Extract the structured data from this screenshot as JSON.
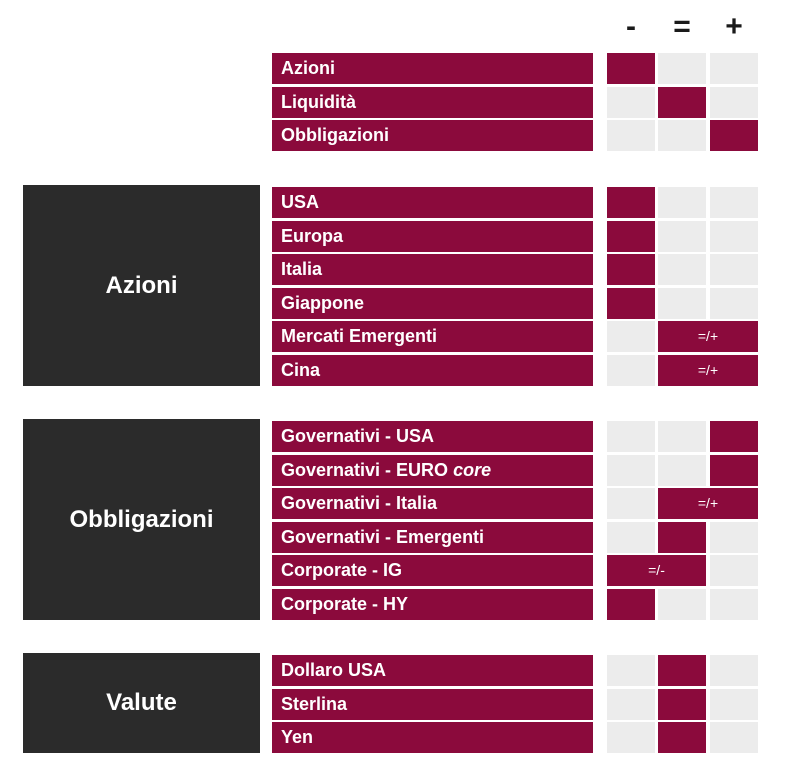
{
  "headers": [
    "-",
    "=",
    "+"
  ],
  "asset_classes": {
    "rows": [
      {
        "label": "Azioni",
        "col_start": 0,
        "col_end": 0,
        "text": ""
      },
      {
        "label": "Liquidità",
        "col_start": 1,
        "col_end": 1,
        "text": ""
      },
      {
        "label": "Obbligazioni",
        "col_start": 2,
        "col_end": 2,
        "text": ""
      }
    ]
  },
  "groups": [
    {
      "name": "Azioni",
      "rows": [
        {
          "label": "USA",
          "col_start": 0,
          "col_end": 0,
          "text": ""
        },
        {
          "label": "Europa",
          "col_start": 0,
          "col_end": 0,
          "text": ""
        },
        {
          "label": "Italia",
          "col_start": 0,
          "col_end": 0,
          "text": ""
        },
        {
          "label": "Giappone",
          "col_start": 0,
          "col_end": 0,
          "text": ""
        },
        {
          "label": "Mercati Emergenti",
          "col_start": 1,
          "col_end": 2,
          "text": "=/+"
        },
        {
          "label": "Cina",
          "col_start": 1,
          "col_end": 2,
          "text": "=/+"
        }
      ]
    },
    {
      "name": "Obbligazioni",
      "rows": [
        {
          "label": "Governativi - USA",
          "col_start": 2,
          "col_end": 2,
          "text": ""
        },
        {
          "label": "Governativi - EURO",
          "label_italic": "core",
          "col_start": 2,
          "col_end": 2,
          "text": ""
        },
        {
          "label": "Governativi - Italia",
          "col_start": 1,
          "col_end": 2,
          "text": "=/+"
        },
        {
          "label": "Governativi - Emergenti",
          "col_start": 1,
          "col_end": 1,
          "text": ""
        },
        {
          "label": "Corporate - IG",
          "col_start": 0,
          "col_end": 1,
          "text": "=/-"
        },
        {
          "label": "Corporate - HY",
          "col_start": 0,
          "col_end": 0,
          "text": ""
        }
      ]
    },
    {
      "name": "Valute",
      "rows": [
        {
          "label": "Dollaro USA",
          "col_start": 1,
          "col_end": 1,
          "text": ""
        },
        {
          "label": "Sterlina",
          "col_start": 1,
          "col_end": 1,
          "text": ""
        },
        {
          "label": "Yen",
          "col_start": 1,
          "col_end": 1,
          "text": ""
        }
      ]
    }
  ],
  "colors": {
    "accent": "#8b0a3c",
    "category_bg": "#2b2b2b",
    "empty_cell": "#ececec"
  }
}
